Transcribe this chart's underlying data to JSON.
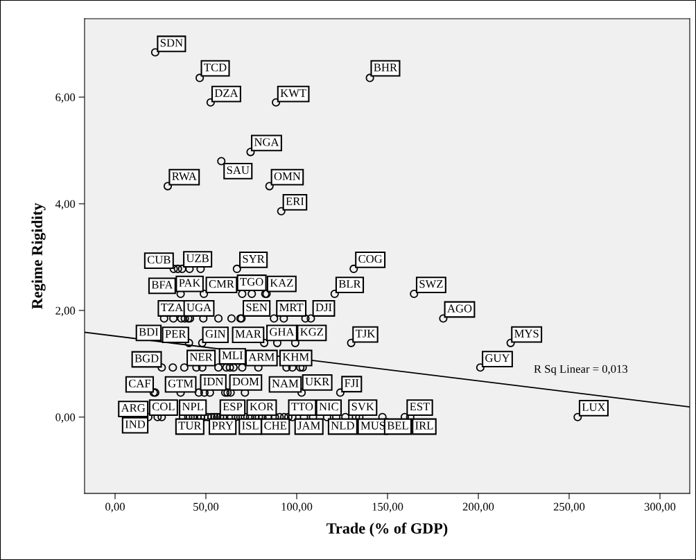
{
  "chart_data": {
    "type": "scatter",
    "xlabel": "Trade (% of GDP)",
    "ylabel": "Regime Rigidity",
    "xlim": [
      -16.8,
      316.4
    ],
    "ylim": [
      -1.43,
      7.47
    ],
    "xticks": [
      {
        "value": 0,
        "label": "0,00"
      },
      {
        "value": 50,
        "label": "50,00"
      },
      {
        "value": 100,
        "label": "100,00"
      },
      {
        "value": 150,
        "label": "150,00"
      },
      {
        "value": 200,
        "label": "200,00"
      },
      {
        "value": 250,
        "label": "250,00"
      },
      {
        "value": 300,
        "label": "300,00"
      }
    ],
    "yticks": [
      {
        "value": 0,
        "label": "0,00"
      },
      {
        "value": 2,
        "label": "2,00"
      },
      {
        "value": 4,
        "label": "4,00"
      },
      {
        "value": 6,
        "label": "6,00"
      }
    ],
    "grid": false,
    "legend": false,
    "series": [
      {
        "marker": "circle",
        "color": "#000000",
        "x": [
          22.1,
          46.6,
          52.6,
          88.6,
          140.3,
          74.6,
          58.5,
          29.0,
          85.0,
          91.5,
          32.3,
          34.6,
          36.9,
          41.0,
          47.1,
          67.1,
          131.4,
          36.1,
          48.9,
          70.0,
          75.3,
          82.7,
          83.4,
          120.9,
          164.6,
          27.0,
          32.1,
          36.5,
          38.4,
          40.3,
          41.2,
          48.6,
          56.9,
          64.1,
          69.0,
          69.6,
          87.5,
          92.9,
          104.8,
          107.8,
          180.7,
          40.7,
          48.0,
          82.1,
          89.3,
          99.2,
          130.0,
          217.8,
          25.7,
          31.8,
          38.1,
          44.8,
          48.0,
          56.9,
          61.3,
          63.2,
          65.2,
          70.0,
          78.9,
          94.4,
          97.6,
          102.0,
          103.3,
          201.1,
          21.3,
          22.1,
          36.1,
          46.1,
          49.2,
          52.2,
          60.7,
          61.9,
          63.6,
          71.5,
          102.7,
          124.0,
          18.3,
          23.4,
          25.7,
          37.4,
          40.3,
          42.9,
          45.4,
          47.3,
          49.2,
          51.1,
          53.1,
          54.7,
          56.2,
          57.8,
          59.4,
          63.9,
          66.4,
          69.0,
          71.5,
          74.3,
          77.2,
          79.2,
          81.1,
          84.2,
          88.0,
          90.6,
          93.1,
          95.4,
          97.6,
          104.0,
          109.0,
          116.7,
          121.8,
          126.8,
          132.6,
          134.5,
          147.2,
          159.5,
          162.5,
          254.7
        ],
        "values": [
          6.84,
          6.36,
          5.9,
          5.9,
          6.36,
          4.97,
          4.8,
          4.33,
          4.33,
          3.86,
          2.78,
          2.78,
          2.78,
          2.78,
          2.78,
          2.78,
          2.78,
          2.31,
          2.31,
          2.31,
          2.31,
          2.31,
          2.31,
          2.31,
          2.31,
          1.85,
          1.85,
          1.85,
          1.85,
          1.85,
          1.85,
          1.85,
          1.85,
          1.85,
          1.85,
          1.85,
          1.85,
          1.85,
          1.85,
          1.85,
          1.85,
          1.39,
          1.39,
          1.39,
          1.39,
          1.39,
          1.39,
          1.39,
          0.93,
          0.93,
          0.93,
          0.93,
          0.93,
          0.93,
          0.93,
          0.93,
          0.93,
          0.93,
          0.93,
          0.93,
          0.93,
          0.93,
          0.93,
          0.93,
          0.46,
          0.46,
          0.46,
          0.46,
          0.46,
          0.46,
          0.46,
          0.46,
          0.46,
          0.46,
          0.46,
          0.46,
          0,
          0,
          0,
          0,
          0,
          0,
          0,
          0,
          0,
          0,
          0,
          0,
          0,
          0,
          0,
          0,
          0,
          0,
          0,
          0,
          0,
          0,
          0,
          0,
          0,
          0,
          0,
          0,
          0,
          0,
          0,
          0,
          0,
          0,
          0,
          0,
          0,
          0,
          0,
          0
        ]
      },
      {
        "type": "line",
        "color": "#000000",
        "x": [
          -16.8,
          316.4
        ],
        "values": [
          1.59,
          0.19
        ]
      }
    ],
    "annotations": [
      {
        "text": "SDN",
        "x": 24.7,
        "y": 6.9
      },
      {
        "text": "TCD",
        "x": 48.8,
        "y": 6.44
      },
      {
        "text": "DZA",
        "x": 54.7,
        "y": 5.96
      },
      {
        "text": "KWT",
        "x": 90.9,
        "y": 5.96
      },
      {
        "text": "BHR",
        "x": 142.3,
        "y": 6.44
      },
      {
        "text": "NGA",
        "x": 76.5,
        "y": 5.04
      },
      {
        "text": "RWA",
        "x": 31.2,
        "y": 4.4
      },
      {
        "text": "SAU",
        "x": 61.3,
        "y": 4.71
      },
      {
        "text": "OMN",
        "x": 87.4,
        "y": 4.4
      },
      {
        "text": "ERI",
        "x": 93.9,
        "y": 3.93
      },
      {
        "text": "CUB",
        "x": 32.3,
        "y": 2.78
      },
      {
        "text": "UZB",
        "x": 39.1,
        "y": 2.86
      },
      {
        "text": "SYR",
        "x": 70.0,
        "y": 2.85
      },
      {
        "text": "COG",
        "x": 133.8,
        "y": 2.85
      },
      {
        "text": "BFA",
        "x": 36.1,
        "y": 2.31
      },
      {
        "text": "PAK",
        "x": 35.0,
        "y": 2.4
      },
      {
        "text": "CMR",
        "x": 51.5,
        "y": 2.38
      },
      {
        "text": "TGO",
        "x": 68.7,
        "y": 2.42
      },
      {
        "text": "KAZ",
        "x": 85.2,
        "y": 2.4
      },
      {
        "text": "BLR",
        "x": 123.0,
        "y": 2.38
      },
      {
        "text": "SWZ",
        "x": 167.3,
        "y": 2.38
      },
      {
        "text": "TZA",
        "x": 25.1,
        "y": 1.94
      },
      {
        "text": "UGA",
        "x": 39.3,
        "y": 1.94
      },
      {
        "text": "SEN",
        "x": 71.9,
        "y": 1.94
      },
      {
        "text": "MRT",
        "x": 90.3,
        "y": 1.94
      },
      {
        "text": "DJI",
        "x": 110.3,
        "y": 1.94
      },
      {
        "text": "AGO",
        "x": 182.8,
        "y": 1.92
      },
      {
        "text": "BDI",
        "x": 13.0,
        "y": 1.48
      },
      {
        "text": "PER",
        "x": 40.7,
        "y": 1.39
      },
      {
        "text": "GIN",
        "x": 48.0,
        "y": 1.39
      },
      {
        "text": "MAR",
        "x": 82.1,
        "y": 1.39
      },
      {
        "text": "GHA",
        "x": 84.9,
        "y": 1.48
      },
      {
        "text": "KGZ",
        "x": 101.8,
        "y": 1.48
      },
      {
        "text": "TJK",
        "x": 132.3,
        "y": 1.45
      },
      {
        "text": "MYS",
        "x": 219.7,
        "y": 1.45
      },
      {
        "text": "BGD",
        "x": 25.7,
        "y": 0.93
      },
      {
        "text": "NER",
        "x": 41.0,
        "y": 1.01
      },
      {
        "text": "MLI",
        "x": 58.8,
        "y": 1.04
      },
      {
        "text": "ARM",
        "x": 73.4,
        "y": 1.01
      },
      {
        "text": "KHM",
        "x": 92.1,
        "y": 1.01
      },
      {
        "text": "GUY",
        "x": 203.6,
        "y": 0.99
      },
      {
        "text": "CAF",
        "x": 21.3,
        "y": 0.46
      },
      {
        "text": "GTM",
        "x": 36.1,
        "y": 0.46
      },
      {
        "text": "IDN",
        "x": 48.4,
        "y": 0.55
      },
      {
        "text": "DOM",
        "x": 64.5,
        "y": 0.55
      },
      {
        "text": "NAM",
        "x": 102.7,
        "y": 0.46
      },
      {
        "text": "UKR",
        "x": 104.6,
        "y": 0.55
      },
      {
        "text": "FJI",
        "x": 126.2,
        "y": 0.52
      },
      {
        "text": "ARG",
        "x": 18.3,
        "y": 0
      },
      {
        "text": "COL",
        "x": 20.3,
        "y": 0.08
      },
      {
        "text": "NPL",
        "x": 36.8,
        "y": 0.08
      },
      {
        "text": "ESP",
        "x": 59.2,
        "y": 0.08
      },
      {
        "text": "KOR",
        "x": 74.0,
        "y": 0.08
      },
      {
        "text": "TTO",
        "x": 96.9,
        "y": 0.08
      },
      {
        "text": "NIC",
        "x": 112.2,
        "y": 0.08
      },
      {
        "text": "SVK",
        "x": 130.0,
        "y": 0.08
      },
      {
        "text": "EST",
        "x": 162.1,
        "y": 0.08
      },
      {
        "text": "LUX",
        "x": 257.0,
        "y": 0.07
      },
      {
        "text": "IND",
        "x": 18.3,
        "y": 0
      },
      {
        "text": "TUR",
        "x": 34.8,
        "y": -0.08
      },
      {
        "text": "PRY",
        "x": 53.2,
        "y": -0.08
      },
      {
        "text": "ISL",
        "x": 69.7,
        "y": -0.08
      },
      {
        "text": "CHE",
        "x": 81.9,
        "y": -0.08
      },
      {
        "text": "JAM",
        "x": 100.4,
        "y": -0.08
      },
      {
        "text": "NLD",
        "x": 118.8,
        "y": -0.08
      },
      {
        "text": "MUS",
        "x": 135.1,
        "y": -0.08
      },
      {
        "text": "BEL",
        "x": 149.7,
        "y": -0.08
      },
      {
        "text": "IRL",
        "x": 165.1,
        "y": -0.08
      },
      "R Sq Linear = 0,013"
    ]
  }
}
